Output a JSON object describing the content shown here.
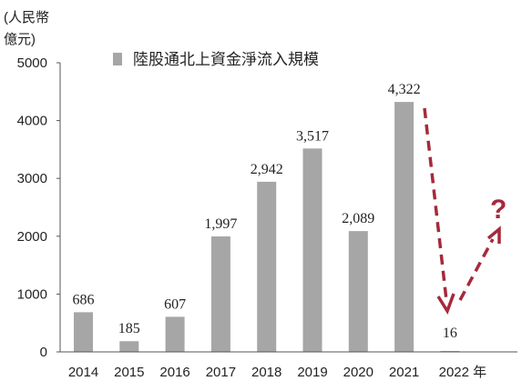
{
  "chart_data": {
    "type": "bar",
    "ylabel_lines": [
      "(人民幣",
      "億元)"
    ],
    "legend_label": "陸股通北上資金淨流入規模",
    "legend_placement": "top-left",
    "categories": [
      "2014",
      "2015",
      "2016",
      "2017",
      "2018",
      "2019",
      "2020",
      "2021",
      "2022 年"
    ],
    "values": [
      686,
      185,
      607,
      1997,
      2942,
      3517,
      2089,
      4322,
      16
    ],
    "data_labels": [
      "686",
      "185",
      "607",
      "1,997",
      "2,942",
      "3,517",
      "2,089",
      "4,322",
      "16"
    ],
    "yticks": [
      "0",
      "1000",
      "2000",
      "3000",
      "4000",
      "5000"
    ],
    "ylim": [
      0,
      5000
    ],
    "grid": false,
    "annotation": "?"
  },
  "colors": {
    "bar": "#a6a6a6",
    "axis": "#555555",
    "arrow": "#a52a3c"
  }
}
